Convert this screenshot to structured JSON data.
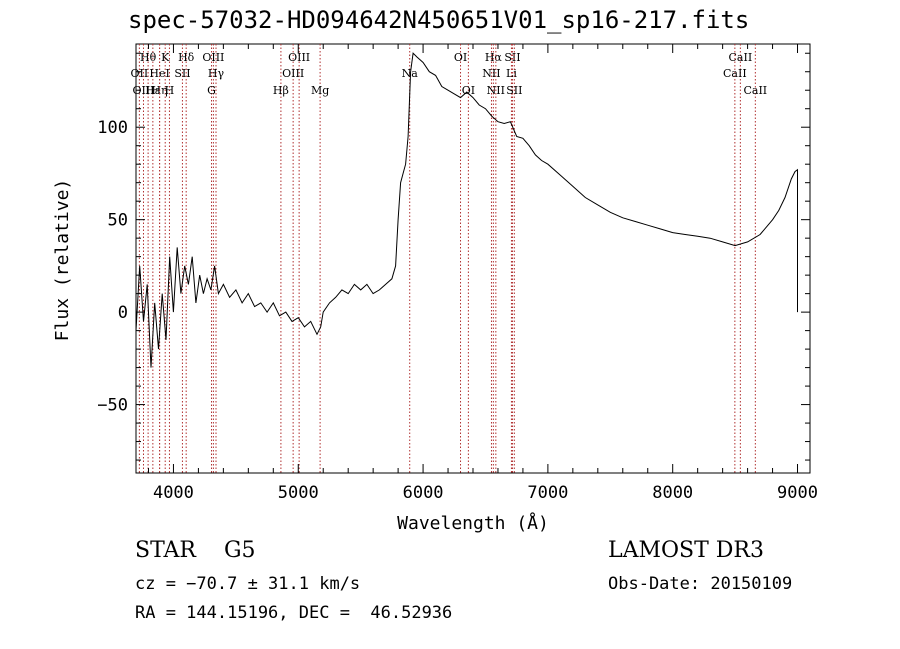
{
  "chart_data": {
    "type": "line",
    "title": "spec-57032-HD094642N450651V01_sp16-217.fits",
    "xlabel": "Wavelength (Å)",
    "ylabel": "Flux (relative)",
    "xlim": [
      3700,
      9100
    ],
    "ylim": [
      -87,
      145
    ],
    "x_ticks": [
      4000,
      5000,
      6000,
      7000,
      8000,
      9000
    ],
    "x_tick_labels": [
      "4000",
      "5000",
      "6000",
      "7000",
      "8000",
      "9000"
    ],
    "y_ticks": [
      -50,
      0,
      50,
      100
    ],
    "y_tick_labels": [
      "−50",
      "0",
      "50",
      "100"
    ],
    "grid": false,
    "series": [
      {
        "name": "spectrum",
        "x": [
          3700,
          3730,
          3760,
          3790,
          3820,
          3850,
          3880,
          3910,
          3940,
          3970,
          4000,
          4030,
          4060,
          4090,
          4120,
          4150,
          4180,
          4210,
          4240,
          4270,
          4300,
          4330,
          4360,
          4400,
          4450,
          4500,
          4550,
          4600,
          4650,
          4700,
          4750,
          4800,
          4850,
          4900,
          4950,
          5000,
          5050,
          5100,
          5150,
          5180,
          5200,
          5250,
          5300,
          5350,
          5400,
          5450,
          5500,
          5550,
          5600,
          5650,
          5700,
          5750,
          5780,
          5800,
          5820,
          5840,
          5860,
          5880,
          5900,
          5920,
          5950,
          6000,
          6050,
          6100,
          6150,
          6200,
          6250,
          6300,
          6350,
          6400,
          6450,
          6500,
          6550,
          6600,
          6650,
          6700,
          6750,
          6800,
          6850,
          6900,
          6950,
          7000,
          7100,
          7200,
          7300,
          7400,
          7500,
          7600,
          7700,
          7800,
          7900,
          8000,
          8100,
          8200,
          8300,
          8400,
          8500,
          8600,
          8700,
          8800,
          8850,
          8900,
          8950,
          8980,
          9000,
          9000
        ],
        "y": [
          -10,
          25,
          -5,
          15,
          -30,
          5,
          -20,
          10,
          -15,
          30,
          0,
          35,
          10,
          25,
          15,
          30,
          5,
          20,
          10,
          18,
          12,
          25,
          10,
          15,
          8,
          12,
          5,
          10,
          3,
          5,
          0,
          5,
          -2,
          0,
          -5,
          -3,
          -8,
          -5,
          -12,
          -8,
          0,
          5,
          8,
          12,
          10,
          15,
          12,
          15,
          10,
          12,
          15,
          18,
          25,
          50,
          70,
          75,
          80,
          95,
          130,
          140,
          138,
          135,
          130,
          128,
          122,
          120,
          118,
          116,
          119,
          116,
          112,
          110,
          106,
          103,
          102,
          103,
          95,
          94,
          90,
          85,
          82,
          80,
          74,
          68,
          62,
          58,
          54,
          51,
          49,
          47,
          45,
          43,
          42,
          41,
          40,
          38,
          36,
          38,
          42,
          50,
          55,
          62,
          72,
          76,
          77,
          0
        ]
      }
    ],
    "line_markers": [
      {
        "label": "Hθ",
        "x": 3797,
        "row": 1
      },
      {
        "label": "OII",
        "x": 3727,
        "row": 2
      },
      {
        "label": "OIII",
        "x": 3760,
        "row": 3
      },
      {
        "label": "Hε",
        "x": 3835,
        "row": 3
      },
      {
        "label": "Hη",
        "x": 3889,
        "row": 3
      },
      {
        "label": "HeI",
        "x": 3889,
        "row": 2
      },
      {
        "label": "K",
        "x": 3934,
        "row": 1
      },
      {
        "label": "H",
        "x": 3968,
        "row": 3
      },
      {
        "label": "SII",
        "x": 4072,
        "row": 2
      },
      {
        "label": "Hδ",
        "x": 4102,
        "row": 1
      },
      {
        "label": "OIII",
        "x": 4320,
        "row": 1
      },
      {
        "label": "Hγ",
        "x": 4341,
        "row": 2
      },
      {
        "label": "G",
        "x": 4305,
        "row": 3
      },
      {
        "label": "Hβ",
        "x": 4861,
        "row": 3
      },
      {
        "label": "OIII",
        "x": 5007,
        "row": 1
      },
      {
        "label": "OIII",
        "x": 4959,
        "row": 2
      },
      {
        "label": "Mg",
        "x": 5175,
        "row": 3
      },
      {
        "label": "Na",
        "x": 5893,
        "row": 2
      },
      {
        "label": "OI",
        "x": 6300,
        "row": 1
      },
      {
        "label": "OI",
        "x": 6363,
        "row": 3
      },
      {
        "label": "Hα",
        "x": 6563,
        "row": 1
      },
      {
        "label": "NII",
        "x": 6548,
        "row": 2
      },
      {
        "label": "NII",
        "x": 6583,
        "row": 3
      },
      {
        "label": "SII",
        "x": 6716,
        "row": 1
      },
      {
        "label": "Li",
        "x": 6708,
        "row": 2
      },
      {
        "label": "SII",
        "x": 6731,
        "row": 3
      },
      {
        "label": "CaII",
        "x": 8542,
        "row": 1
      },
      {
        "label": "CaII",
        "x": 8498,
        "row": 2
      },
      {
        "label": "CaII",
        "x": 8662,
        "row": 3
      }
    ]
  },
  "info": {
    "object_class": "STAR",
    "subclass": "G5",
    "survey": "LAMOST DR3",
    "cz": "cz = −70.7 ± 31.1 km/s",
    "obs_date": "Obs-Date: 20150109",
    "radec": "RA = 144.15196, DEC =  46.52936"
  }
}
